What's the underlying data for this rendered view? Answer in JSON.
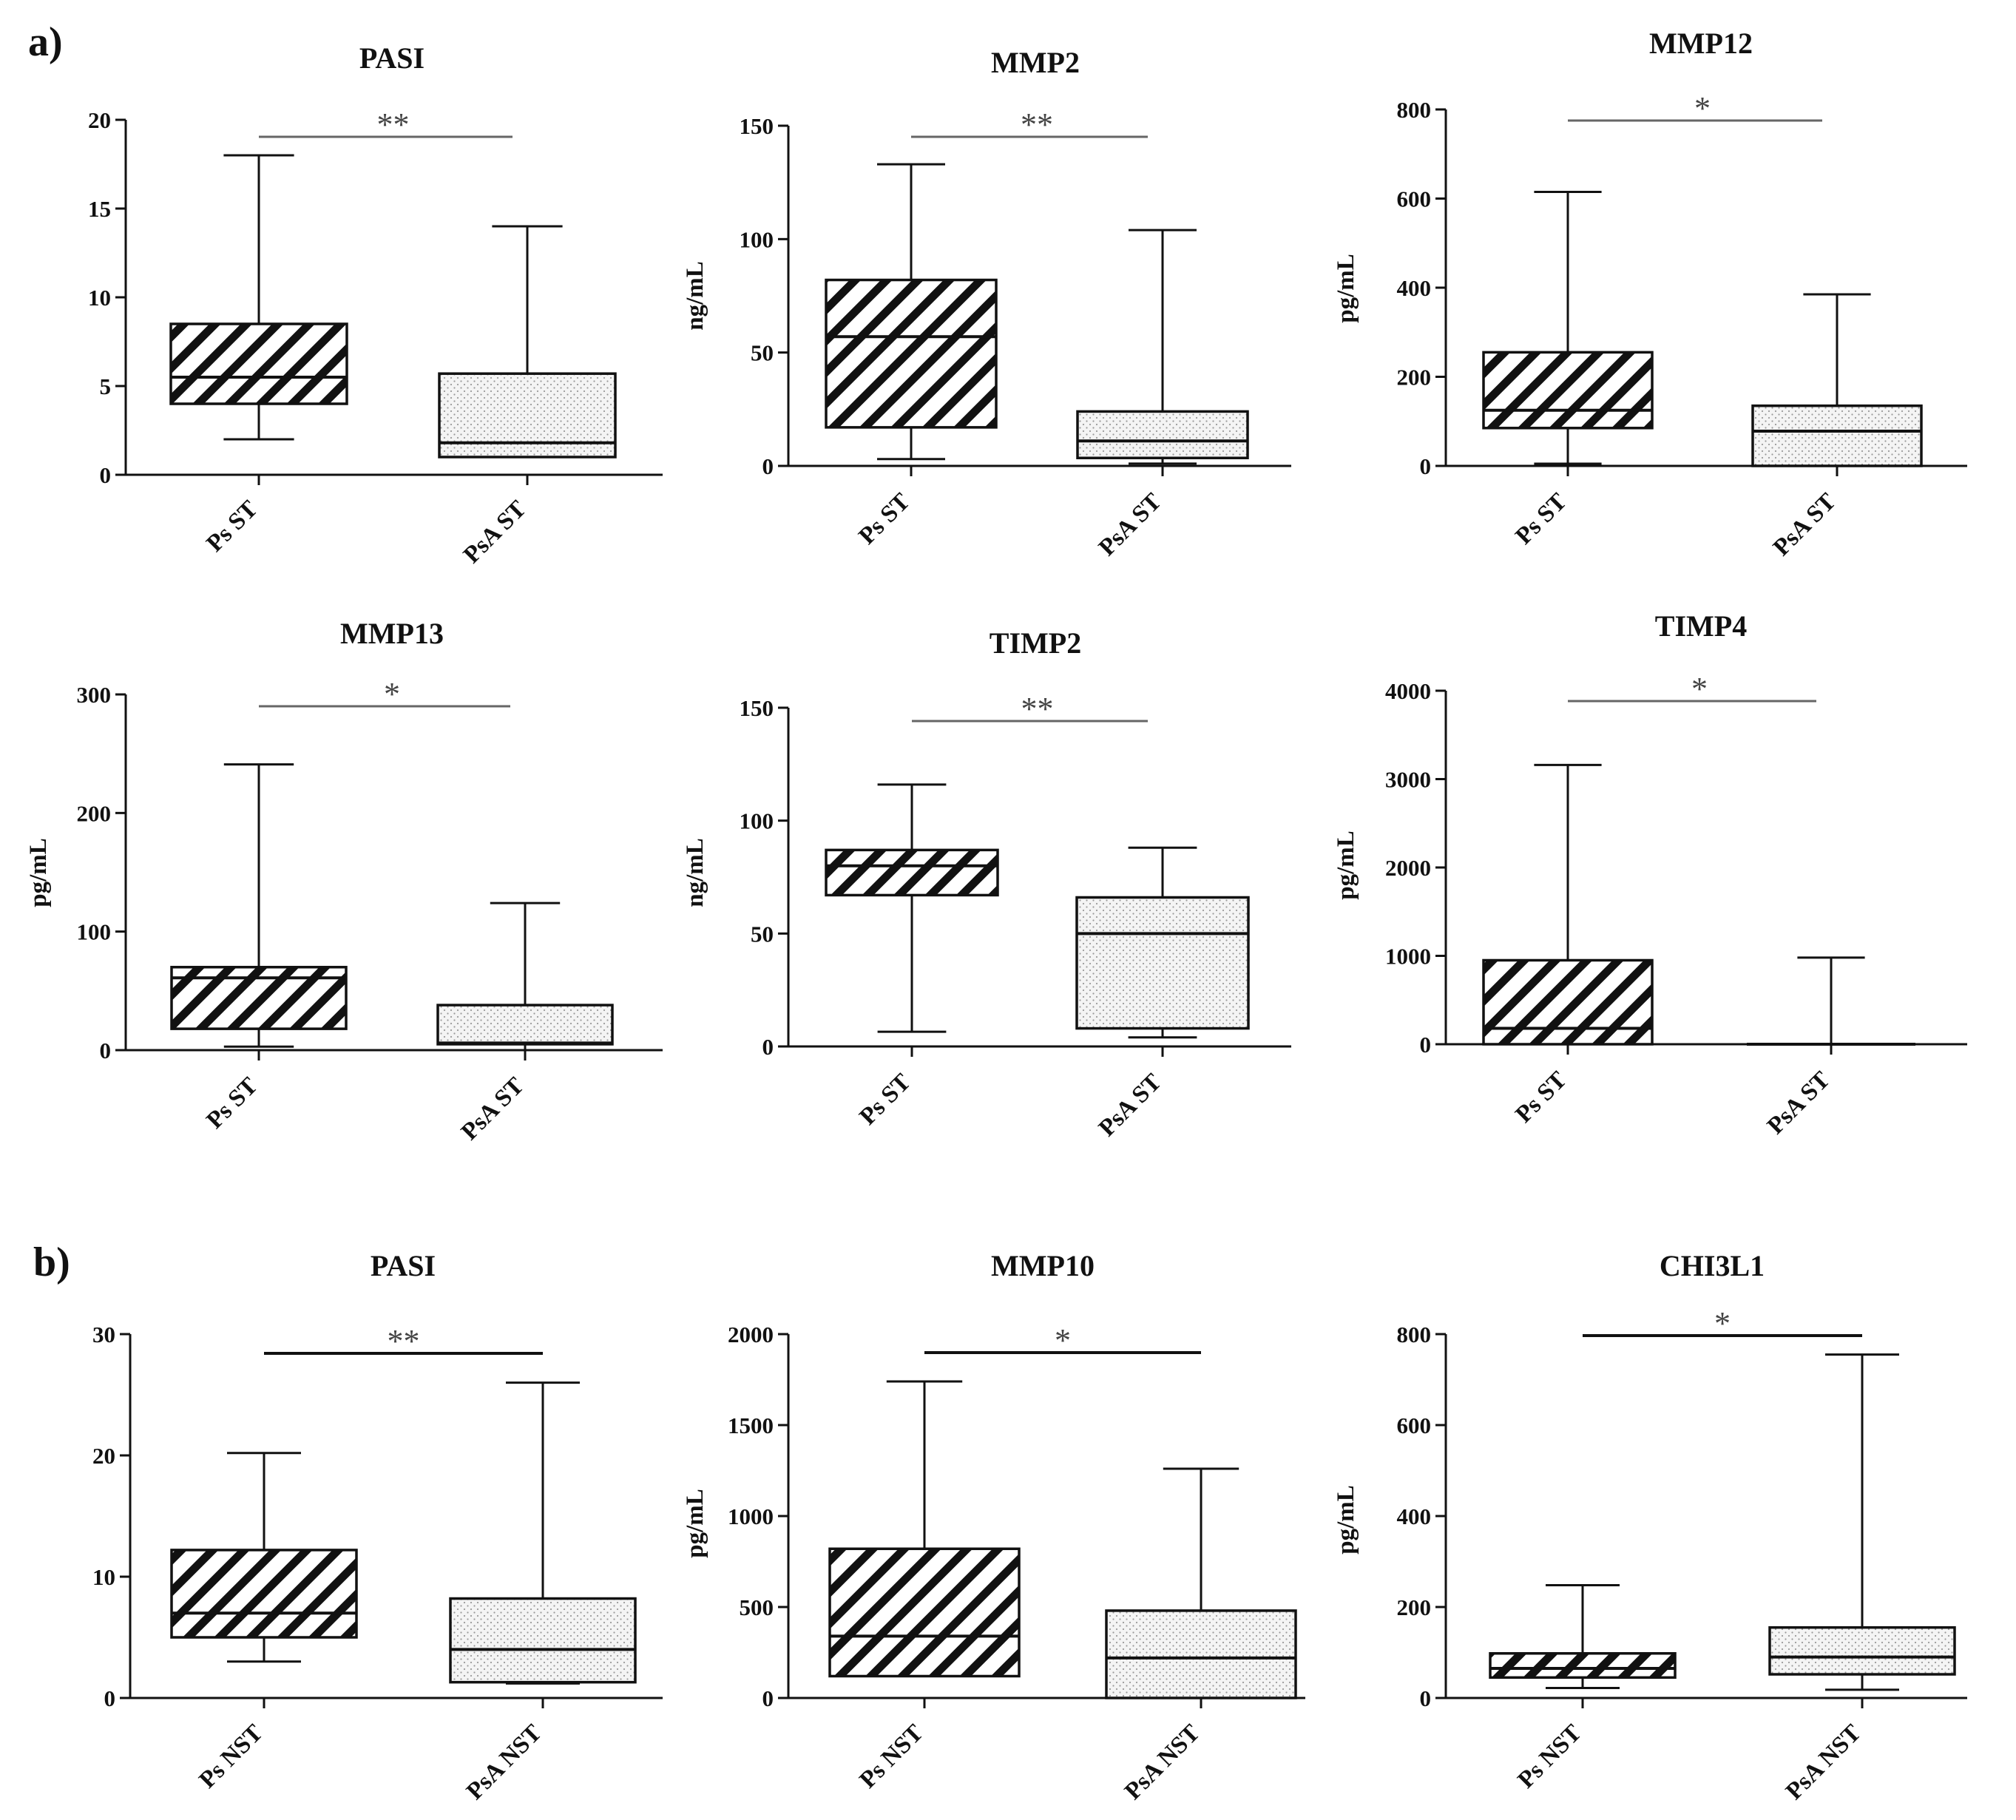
{
  "panels": [
    {
      "letter": "a)"
    },
    {
      "letter": "b)"
    }
  ],
  "chart_data": [
    {
      "type": "box",
      "panel": "a)",
      "title": "PASI",
      "ylabel": "",
      "ylim": [
        0,
        20
      ],
      "yticks": [
        0,
        5,
        10,
        15,
        20
      ],
      "categories": [
        "Ps ST",
        "PsA ST"
      ],
      "series": [
        {
          "name": "Ps ST",
          "min": 2,
          "q1": 4,
          "median": 5.5,
          "q3": 8.5,
          "max": 18,
          "pattern": "hatch"
        },
        {
          "name": "PsA ST",
          "min": 1,
          "q1": 1,
          "median": 1.8,
          "q3": 5.7,
          "max": 14,
          "pattern": "dots"
        }
      ],
      "significance": "**"
    },
    {
      "type": "box",
      "panel": "a)",
      "title": "MMP2",
      "ylabel": "ng/mL",
      "ylim": [
        0,
        150
      ],
      "yticks": [
        0,
        50,
        100,
        150
      ],
      "categories": [
        "Ps ST",
        "PsA ST"
      ],
      "series": [
        {
          "name": "Ps ST",
          "min": 3,
          "q1": 17,
          "median": 57,
          "q3": 82,
          "max": 133,
          "pattern": "hatch"
        },
        {
          "name": "PsA ST",
          "min": 1,
          "q1": 3.5,
          "median": 11,
          "q3": 24,
          "max": 104,
          "pattern": "dots"
        }
      ],
      "significance": "**"
    },
    {
      "type": "box",
      "panel": "a)",
      "title": "MMP12",
      "ylabel": "pg/mL",
      "ylim": [
        0,
        800
      ],
      "yticks": [
        0,
        200,
        400,
        600,
        800
      ],
      "categories": [
        "Ps ST",
        "PsA ST"
      ],
      "series": [
        {
          "name": "Ps ST",
          "min": 5,
          "q1": 85,
          "median": 125,
          "q3": 255,
          "max": 615,
          "pattern": "hatch"
        },
        {
          "name": "PsA ST",
          "min": 0,
          "q1": 0,
          "median": 78,
          "q3": 135,
          "max": 385,
          "pattern": "dots"
        }
      ],
      "significance": "*"
    },
    {
      "type": "box",
      "panel": "a)",
      "title": "MMP13",
      "ylabel": "pg/mL",
      "ylim": [
        0,
        300
      ],
      "yticks": [
        0,
        100,
        200,
        300
      ],
      "categories": [
        "Ps ST",
        "PsA ST"
      ],
      "series": [
        {
          "name": "Ps ST",
          "min": 3,
          "q1": 18,
          "median": 61,
          "q3": 70,
          "max": 241,
          "pattern": "hatch"
        },
        {
          "name": "PsA ST",
          "min": 0,
          "q1": 5,
          "median": 6,
          "q3": 38,
          "max": 124,
          "pattern": "dots"
        }
      ],
      "significance": "*"
    },
    {
      "type": "box",
      "panel": "a)",
      "title": "TIMP2",
      "ylabel": "ng/mL",
      "ylim": [
        0,
        150
      ],
      "yticks": [
        0,
        50,
        100,
        150
      ],
      "categories": [
        "Ps ST",
        "PsA ST"
      ],
      "series": [
        {
          "name": "Ps ST",
          "min": 6.5,
          "q1": 67,
          "median": 80,
          "q3": 87,
          "max": 116,
          "pattern": "hatch"
        },
        {
          "name": "PsA ST",
          "min": 4,
          "q1": 8,
          "median": 50,
          "q3": 66,
          "max": 88,
          "pattern": "dots"
        }
      ],
      "significance": "**"
    },
    {
      "type": "box",
      "panel": "a)",
      "title": "TIMP4",
      "ylabel": "pg/mL",
      "ylim": [
        0,
        4000
      ],
      "yticks": [
        0,
        1000,
        2000,
        3000,
        4000
      ],
      "categories": [
        "Ps ST",
        "PsA ST"
      ],
      "series": [
        {
          "name": "Ps ST",
          "min": 0,
          "q1": 0,
          "median": 180,
          "q3": 950,
          "max": 3160,
          "pattern": "hatch"
        },
        {
          "name": "PsA ST",
          "min": 0,
          "q1": 0,
          "median": 0,
          "q3": 0,
          "max": 980,
          "pattern": "dots"
        }
      ],
      "significance": "*"
    },
    {
      "type": "box",
      "panel": "b)",
      "title": "PASI",
      "ylabel": "",
      "ylim": [
        0,
        30
      ],
      "yticks": [
        0,
        10,
        20,
        30
      ],
      "categories": [
        "Ps NST",
        "PsA NST"
      ],
      "series": [
        {
          "name": "Ps NST",
          "min": 3,
          "q1": 5,
          "median": 7,
          "q3": 12.2,
          "max": 20.2,
          "pattern": "hatch"
        },
        {
          "name": "PsA NST",
          "min": 1.2,
          "q1": 1.3,
          "median": 4,
          "q3": 8.2,
          "max": 26,
          "pattern": "dots"
        }
      ],
      "significance": "**"
    },
    {
      "type": "box",
      "panel": "b)",
      "title": "MMP10",
      "ylabel": "pg/mL",
      "ylim": [
        0,
        2000
      ],
      "yticks": [
        0,
        500,
        1000,
        1500,
        2000
      ],
      "categories": [
        "Ps NST",
        "PsA NST"
      ],
      "series": [
        {
          "name": "Ps NST",
          "min": 120,
          "q1": 120,
          "median": 340,
          "q3": 820,
          "max": 1740,
          "pattern": "hatch"
        },
        {
          "name": "PsA NST",
          "min": 0,
          "q1": 0,
          "median": 220,
          "q3": 480,
          "max": 1260,
          "pattern": "dots"
        }
      ],
      "significance": "*"
    },
    {
      "type": "box",
      "panel": "b)",
      "title": "CHI3L1",
      "ylabel": "pg/mL",
      "ylim": [
        0,
        800
      ],
      "yticks": [
        0,
        200,
        400,
        600,
        800
      ],
      "categories": [
        "Ps NST",
        "PsA NST"
      ],
      "series": [
        {
          "name": "Ps NST",
          "min": 22,
          "q1": 45,
          "median": 65,
          "q3": 98,
          "max": 248,
          "pattern": "hatch"
        },
        {
          "name": "PsA NST",
          "min": 18,
          "q1": 52,
          "median": 90,
          "q3": 155,
          "max": 755,
          "pattern": "dots"
        }
      ],
      "significance": "*"
    }
  ]
}
